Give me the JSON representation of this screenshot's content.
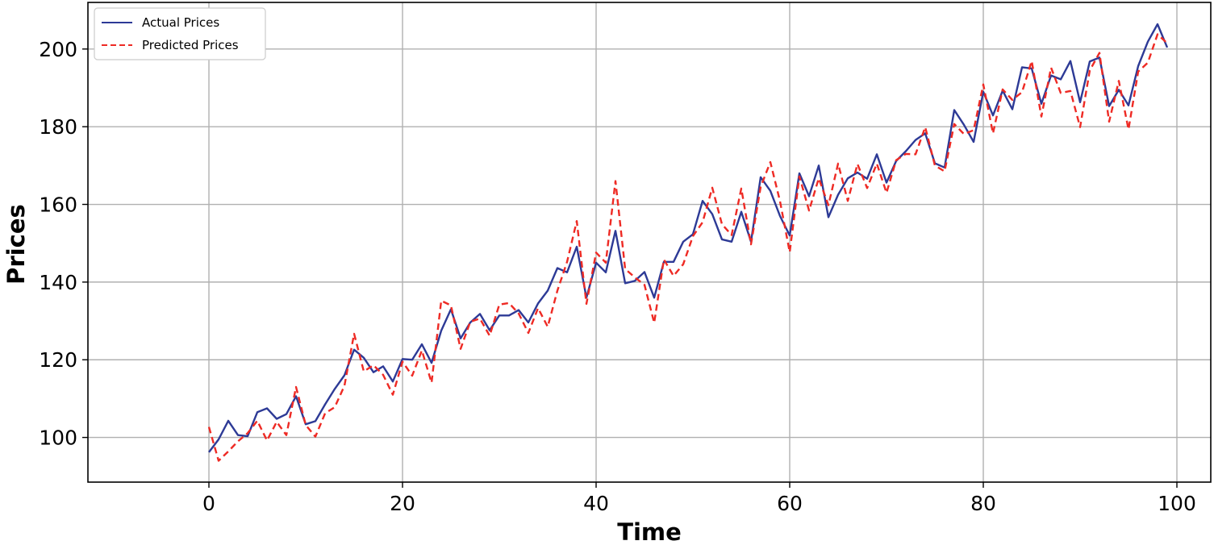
{
  "chart_data": {
    "type": "line",
    "title": "",
    "xlabel": "Time",
    "ylabel": "Prices",
    "xlim": [
      -12.5,
      103.5
    ],
    "ylim": [
      88.5,
      212
    ],
    "xticks": [
      0,
      20,
      40,
      60,
      80,
      100
    ],
    "yticks": [
      100,
      120,
      140,
      160,
      180,
      200
    ],
    "grid": true,
    "legend": "top-left",
    "x": [
      0,
      1,
      2,
      3,
      4,
      5,
      6,
      7,
      8,
      9,
      10,
      11,
      12,
      13,
      14,
      15,
      16,
      17,
      18,
      19,
      20,
      21,
      22,
      23,
      24,
      25,
      26,
      27,
      28,
      29,
      30,
      31,
      32,
      33,
      34,
      35,
      36,
      37,
      38,
      39,
      40,
      41,
      42,
      43,
      44,
      45,
      46,
      47,
      48,
      49,
      50,
      51,
      52,
      53,
      54,
      55,
      56,
      57,
      58,
      59,
      60,
      61,
      62,
      63,
      64,
      65,
      66,
      67,
      68,
      69,
      70,
      71,
      72,
      73,
      74,
      75,
      76,
      77,
      78,
      79,
      80,
      81,
      82,
      83,
      84,
      85,
      86,
      87,
      88,
      89,
      90,
      91,
      92,
      93,
      94,
      95,
      96,
      97,
      98,
      99
    ],
    "series": [
      {
        "name": "Actual Prices",
        "color": "#2d3a96",
        "style": "solid",
        "values": [
          96.2,
          99.5,
          104.3,
          100.6,
          100.3,
          106.5,
          107.5,
          104.8,
          106,
          110.6,
          103.4,
          104.2,
          108.5,
          112.5,
          116,
          122.6,
          120.5,
          116.8,
          118.3,
          114.4,
          120.2,
          120,
          124,
          119.2,
          127.5,
          133,
          125.5,
          129.6,
          131.8,
          127.6,
          131.4,
          131.4,
          132.8,
          129.6,
          134.5,
          137.8,
          143.6,
          142.5,
          149.1,
          136,
          145,
          142.5,
          153.2,
          139.7,
          140.3,
          142.6,
          136,
          145.2,
          145.2,
          150.4,
          152.3,
          160.9,
          157.5,
          151,
          150.4,
          158.1,
          150.4,
          167,
          163.5,
          157,
          152,
          168,
          162.1,
          170,
          156.7,
          162.5,
          166.7,
          168.2,
          166.6,
          172.9,
          165.6,
          171.2,
          173.7,
          176.6,
          178.3,
          170.6,
          169.5,
          184.3,
          180.5,
          176.1,
          189,
          182.9,
          189.3,
          184.5,
          195.3,
          195,
          185.9,
          193.2,
          192.2,
          196.9,
          186.3,
          196.8,
          197.8,
          185.3,
          189.5,
          185.5,
          195.6,
          201.9,
          206.4,
          200.4
        ]
      },
      {
        "name": "Predicted Prices",
        "color": "#ee2a24",
        "style": "dashed",
        "values": [
          102.7,
          94,
          96.4,
          99,
          101.1,
          104.3,
          99.2,
          104,
          100.6,
          113,
          103.2,
          100.2,
          106.2,
          107.8,
          113.3,
          126.7,
          117,
          118.6,
          116.1,
          111,
          119.5,
          115.9,
          122.4,
          114.1,
          135.2,
          134,
          122.8,
          129.8,
          130.6,
          126.2,
          134.2,
          134.6,
          131.9,
          126.9,
          133.3,
          128.5,
          137.8,
          145.2,
          155.7,
          134.4,
          147.6,
          145,
          166,
          143.4,
          141.2,
          139.3,
          129.5,
          145.8,
          141.6,
          144.6,
          151.8,
          155.4,
          164.3,
          154.9,
          152.1,
          164.1,
          149.7,
          164.5,
          170.9,
          160.8,
          147.7,
          167.2,
          158.4,
          166.7,
          159.8,
          170.5,
          160.9,
          170.4,
          164.2,
          170.5,
          163,
          171.4,
          173,
          172.9,
          179.9,
          170,
          168.5,
          180.7,
          178.1,
          179.1,
          190.9,
          178.3,
          189.6,
          186.9,
          188.9,
          196.9,
          182.6,
          195.2,
          188.7,
          189.2,
          179.9,
          194.5,
          199,
          181.3,
          191.8,
          179.3,
          194.2,
          196.5,
          203.8,
          201.5
        ]
      }
    ]
  }
}
